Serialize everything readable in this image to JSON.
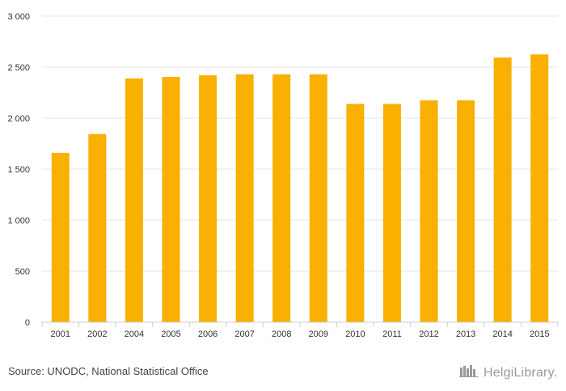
{
  "chart_data": {
    "type": "bar",
    "categories": [
      "2001",
      "2002",
      "2004",
      "2005",
      "2006",
      "2007",
      "2008",
      "2009",
      "2010",
      "2011",
      "2012",
      "2013",
      "2014",
      "2015"
    ],
    "values": [
      1660,
      1845,
      2390,
      2405,
      2420,
      2430,
      2430,
      2430,
      2140,
      2140,
      2175,
      2175,
      2595,
      2625
    ],
    "yticks": [
      "0",
      "500",
      "1 000",
      "1 500",
      "2 000",
      "2 500",
      "3 000"
    ],
    "ylim": [
      0,
      3000
    ],
    "bar_color": "#f9b000",
    "grid": true
  },
  "footer": {
    "source": "Source: UNODC, National Statistical Office",
    "brand": "HelgiLibrary."
  }
}
